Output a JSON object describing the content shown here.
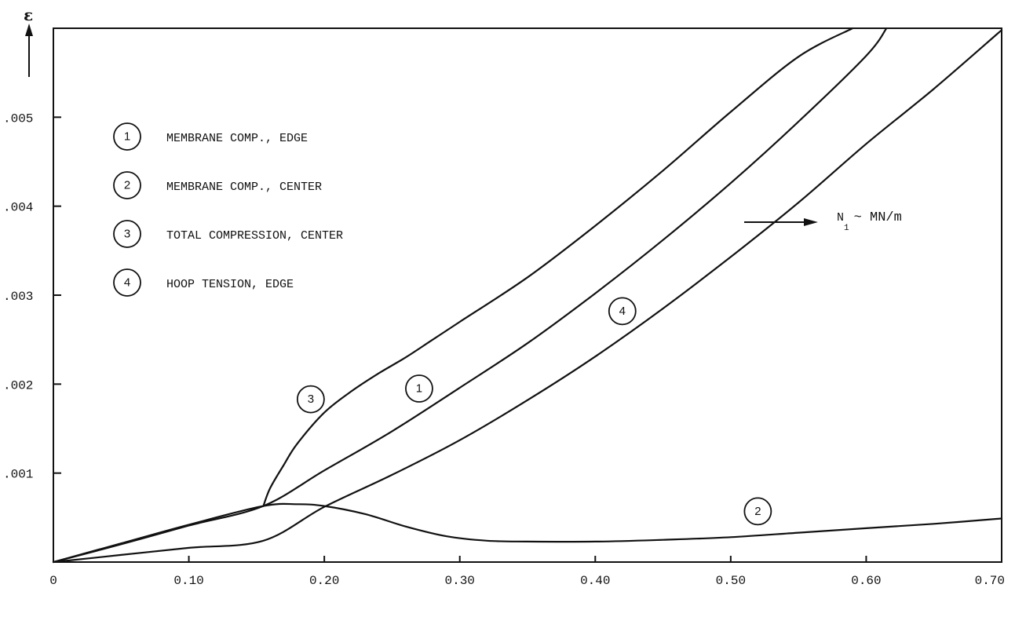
{
  "chart_data": {
    "type": "line",
    "xlabel_symbol": "N",
    "xlabel_subscript": "1",
    "xlabel_unit": "~ MN/m",
    "ylabel": "ε",
    "xlim": [
      0,
      0.7
    ],
    "ylim": [
      0,
      0.006
    ],
    "x_ticks": [
      {
        "value": 0,
        "label": "0"
      },
      {
        "value": 0.1,
        "label": "0.10"
      },
      {
        "value": 0.2,
        "label": "0.20"
      },
      {
        "value": 0.3,
        "label": "0.30"
      },
      {
        "value": 0.4,
        "label": "0.40"
      },
      {
        "value": 0.5,
        "label": "0.50"
      },
      {
        "value": 0.6,
        "label": "0.60"
      },
      {
        "value": 0.7,
        "label": "0.70"
      }
    ],
    "y_ticks": [
      {
        "value": 0.001,
        "label": ".001"
      },
      {
        "value": 0.002,
        "label": ".002"
      },
      {
        "value": 0.003,
        "label": ".003"
      },
      {
        "value": 0.004,
        "label": ".004"
      },
      {
        "value": 0.005,
        "label": ".005"
      }
    ],
    "legend": [
      {
        "number": "1",
        "label": "MEMBRANE COMP., EDGE"
      },
      {
        "number": "2",
        "label": "MEMBRANE COMP., CENTER"
      },
      {
        "number": "3",
        "label": "TOTAL COMPRESSION, CENTER"
      },
      {
        "number": "4",
        "label": "HOOP TENSION, EDGE"
      }
    ],
    "series": [
      {
        "number": "1",
        "label_at": [
          0.27,
          0.00195
        ],
        "points": [
          [
            0,
            0
          ],
          [
            0.05,
            0.0002
          ],
          [
            0.1,
            0.00041
          ],
          [
            0.155,
            0.00063
          ],
          [
            0.2,
            0.00103
          ],
          [
            0.25,
            0.00147
          ],
          [
            0.3,
            0.00196
          ],
          [
            0.35,
            0.00246
          ],
          [
            0.4,
            0.00302
          ],
          [
            0.45,
            0.00362
          ],
          [
            0.5,
            0.00426
          ],
          [
            0.55,
            0.00495
          ],
          [
            0.6,
            0.00569
          ],
          [
            0.615,
            0.006
          ]
        ]
      },
      {
        "number": "2",
        "label_at": [
          0.52,
          0.00057
        ],
        "points": [
          [
            0,
            0
          ],
          [
            0.05,
            0.00021
          ],
          [
            0.1,
            0.00042
          ],
          [
            0.155,
            0.00063
          ],
          [
            0.18,
            0.00065
          ],
          [
            0.2,
            0.00063
          ],
          [
            0.23,
            0.00054
          ],
          [
            0.26,
            0.0004
          ],
          [
            0.29,
            0.00029
          ],
          [
            0.32,
            0.00024
          ],
          [
            0.35,
            0.00023
          ],
          [
            0.4,
            0.00023
          ],
          [
            0.45,
            0.00025
          ],
          [
            0.5,
            0.00028
          ],
          [
            0.55,
            0.00033
          ],
          [
            0.6,
            0.00038
          ],
          [
            0.65,
            0.00043
          ],
          [
            0.7,
            0.00049
          ]
        ]
      },
      {
        "number": "3",
        "label_at": [
          0.19,
          0.00183
        ],
        "points": [
          [
            0.155,
            0.00063
          ],
          [
            0.16,
            0.00083
          ],
          [
            0.17,
            0.00109
          ],
          [
            0.18,
            0.00133
          ],
          [
            0.2,
            0.00168
          ],
          [
            0.22,
            0.00192
          ],
          [
            0.24,
            0.00212
          ],
          [
            0.26,
            0.0023
          ],
          [
            0.28,
            0.0025
          ],
          [
            0.3,
            0.0027
          ],
          [
            0.35,
            0.0032
          ],
          [
            0.4,
            0.00378
          ],
          [
            0.45,
            0.0044
          ],
          [
            0.5,
            0.00506
          ],
          [
            0.55,
            0.00568
          ],
          [
            0.59,
            0.006
          ]
        ]
      },
      {
        "number": "4",
        "label_at": [
          0.42,
          0.00282
        ],
        "points": [
          [
            0,
            0
          ],
          [
            0.05,
            8e-05
          ],
          [
            0.1,
            0.00016
          ],
          [
            0.155,
            0.00024
          ],
          [
            0.2,
            0.00062
          ],
          [
            0.25,
            0.00098
          ],
          [
            0.3,
            0.00137
          ],
          [
            0.35,
            0.00182
          ],
          [
            0.4,
            0.00231
          ],
          [
            0.45,
            0.00285
          ],
          [
            0.5,
            0.00343
          ],
          [
            0.55,
            0.00404
          ],
          [
            0.6,
            0.0047
          ],
          [
            0.65,
            0.00532
          ],
          [
            0.7,
            0.00598
          ]
        ]
      }
    ]
  }
}
